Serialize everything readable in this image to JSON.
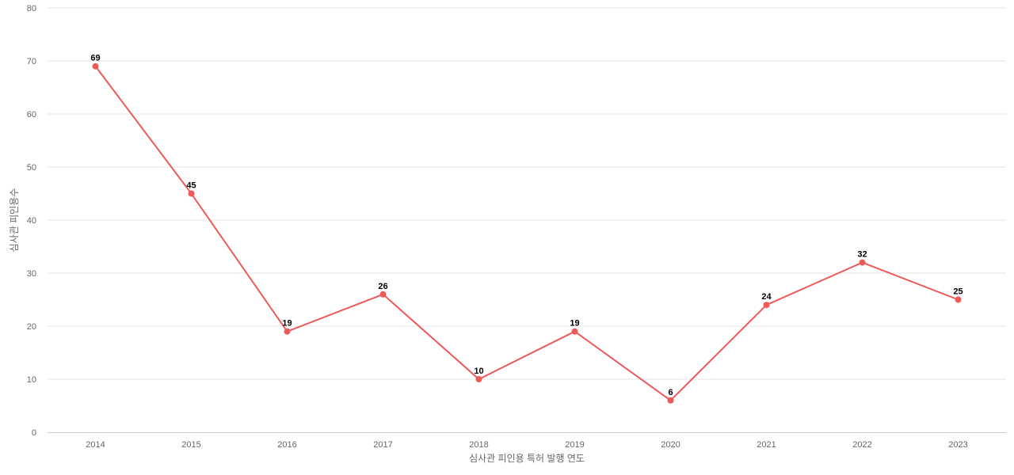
{
  "chart_data": {
    "type": "line",
    "title": "",
    "xlabel": "심사관 피인용 특허 발행 연도",
    "ylabel": "심사관 피인용수",
    "categories": [
      "2014",
      "2015",
      "2016",
      "2017",
      "2018",
      "2019",
      "2020",
      "2021",
      "2022",
      "2023"
    ],
    "series": [
      {
        "values": [
          69,
          45,
          19,
          26,
          10,
          19,
          6,
          24,
          32,
          25
        ],
        "color": "#ee5a5a"
      }
    ],
    "ylim": [
      0,
      80
    ],
    "yticks": [
      0,
      10,
      20,
      30,
      40,
      50,
      60,
      70,
      80
    ],
    "grid": true,
    "data_labels": true,
    "legend": "none"
  }
}
